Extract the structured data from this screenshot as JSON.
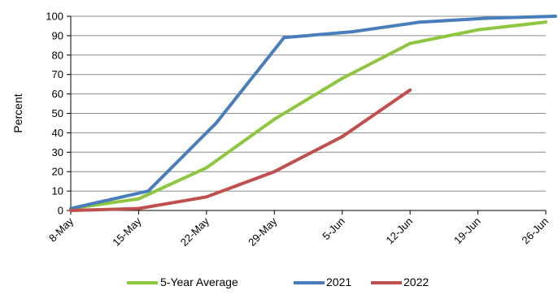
{
  "chart_data": {
    "type": "line",
    "title": "",
    "xlabel": "",
    "ylabel": "Percent",
    "ylim": [
      0,
      100
    ],
    "yticks": [
      0,
      10,
      20,
      30,
      40,
      50,
      60,
      70,
      80,
      90,
      100
    ],
    "x_dates": [
      "2022-05-08",
      "2022-05-15",
      "2022-05-22",
      "2022-05-29",
      "2022-06-05",
      "2022-06-12",
      "2022-06-19",
      "2022-06-26"
    ],
    "x_tick_labels": [
      "8-May",
      "15-May",
      "22-May",
      "29-May",
      "5-Jun",
      "12-Jun",
      "19-Jun",
      "26-Jun"
    ],
    "grid": true,
    "legend_position": "bottom",
    "series": [
      {
        "name": "5-Year Average",
        "color": "#8DC63F",
        "points": [
          {
            "x": "2022-05-08",
            "y": 1
          },
          {
            "x": "2022-05-15",
            "y": 6
          },
          {
            "x": "2022-05-22",
            "y": 22
          },
          {
            "x": "2022-05-29",
            "y": 47
          },
          {
            "x": "2022-06-05",
            "y": 68
          },
          {
            "x": "2022-06-12",
            "y": 86
          },
          {
            "x": "2022-06-19",
            "y": 93
          },
          {
            "x": "2022-06-26",
            "y": 97
          }
        ]
      },
      {
        "name": "2021",
        "color": "#4A7EBB",
        "points": [
          {
            "x": "2022-05-08",
            "y": 1
          },
          {
            "x": "2022-05-16",
            "y": 10
          },
          {
            "x": "2022-05-23",
            "y": 45
          },
          {
            "x": "2022-05-30",
            "y": 89
          },
          {
            "x": "2022-06-06",
            "y": 92
          },
          {
            "x": "2022-06-13",
            "y": 97
          },
          {
            "x": "2022-06-20",
            "y": 99
          },
          {
            "x": "2022-06-27",
            "y": 100
          }
        ]
      },
      {
        "name": "2022",
        "color": "#C0504D",
        "points": [
          {
            "x": "2022-05-08",
            "y": 0
          },
          {
            "x": "2022-05-15",
            "y": 1
          },
          {
            "x": "2022-05-22",
            "y": 7
          },
          {
            "x": "2022-05-29",
            "y": 20
          },
          {
            "x": "2022-06-05",
            "y": 38
          },
          {
            "x": "2022-06-12",
            "y": 62
          }
        ]
      }
    ]
  }
}
